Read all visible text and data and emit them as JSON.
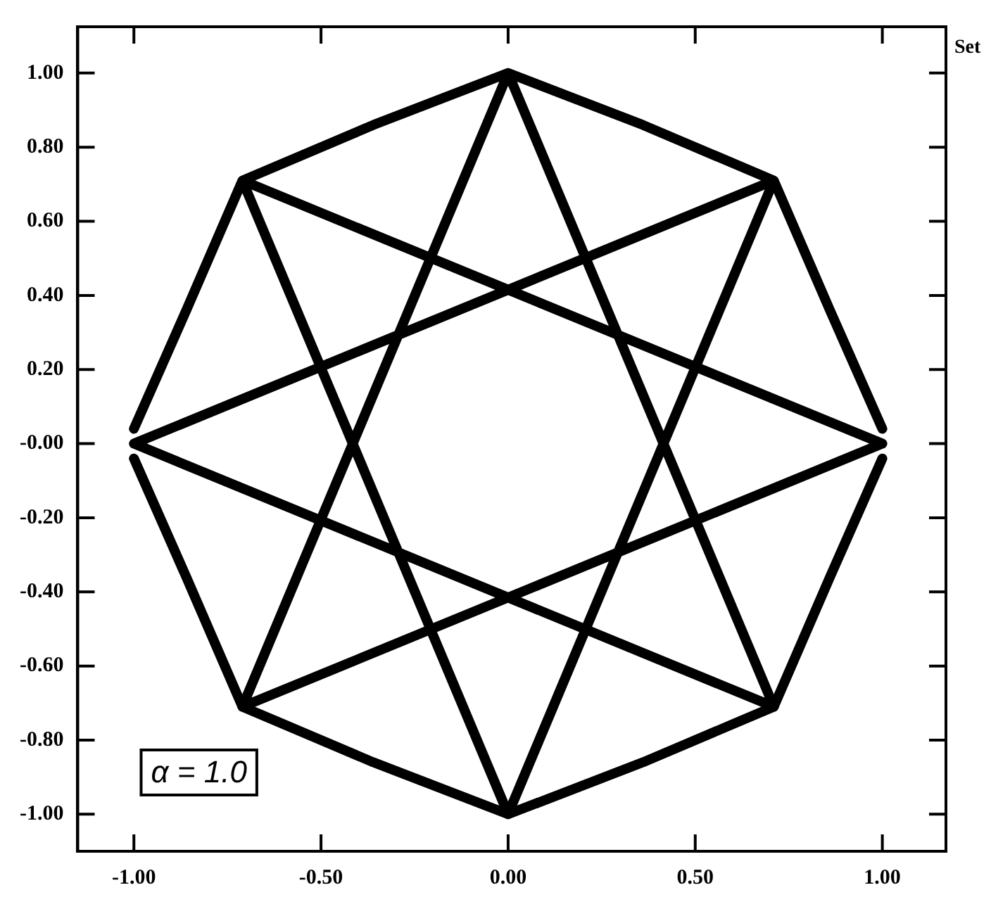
{
  "chart_data": {
    "type": "line",
    "marker": "none",
    "line_style": "solid",
    "grid": false,
    "legend": false,
    "annotations": [
      "α = 1.0",
      "Set"
    ],
    "xlim": [
      -1.15,
      1.17
    ],
    "ylim": [
      -1.1,
      1.125
    ],
    "xticks": [
      {
        "value": -1,
        "label": "-1.00"
      },
      {
        "value": -0.5,
        "label": "-0.50"
      },
      {
        "value": 0,
        "label": "0.00"
      },
      {
        "value": 0.5,
        "label": "0.50"
      },
      {
        "value": 1,
        "label": "1.00"
      }
    ],
    "yticks": [
      {
        "value": -1,
        "label": "-1.00"
      },
      {
        "value": -0.8,
        "label": "-0.80"
      },
      {
        "value": -0.6,
        "label": "-0.60"
      },
      {
        "value": -0.4,
        "label": "-0.40"
      },
      {
        "value": -0.2,
        "label": "-0.20"
      },
      {
        "value": 0,
        "label": "-0.00"
      },
      {
        "value": 0.2,
        "label": "0.20"
      },
      {
        "value": 0.4,
        "label": "0.40"
      },
      {
        "value": 0.6,
        "label": "0.60"
      },
      {
        "value": 0.8,
        "label": "0.80"
      },
      {
        "value": 1,
        "label": "1.00"
      }
    ],
    "series": [
      {
        "color": "#000000",
        "x": [
          1,
          0.86,
          0.71,
          0.36,
          0,
          -0.71,
          1,
          -0.71,
          0,
          0.71,
          -1,
          0.71,
          0,
          -0.36,
          -0.71,
          -0.86,
          -1
        ],
        "values": [
          0.04,
          0.36,
          0.71,
          0.86,
          1,
          -0.71,
          0,
          0.71,
          -1,
          0.71,
          0,
          -0.71,
          1,
          0.86,
          0.71,
          0.36,
          0.04
        ]
      },
      {
        "color": "#000000",
        "x": [
          1,
          0.86,
          0.71,
          0.36,
          0,
          -0.36,
          -0.71,
          -0.86,
          -1
        ],
        "values": [
          -0.04,
          -0.36,
          -0.71,
          -0.86,
          -1,
          -0.86,
          -0.71,
          -0.36,
          -0.04
        ]
      }
    ]
  }
}
